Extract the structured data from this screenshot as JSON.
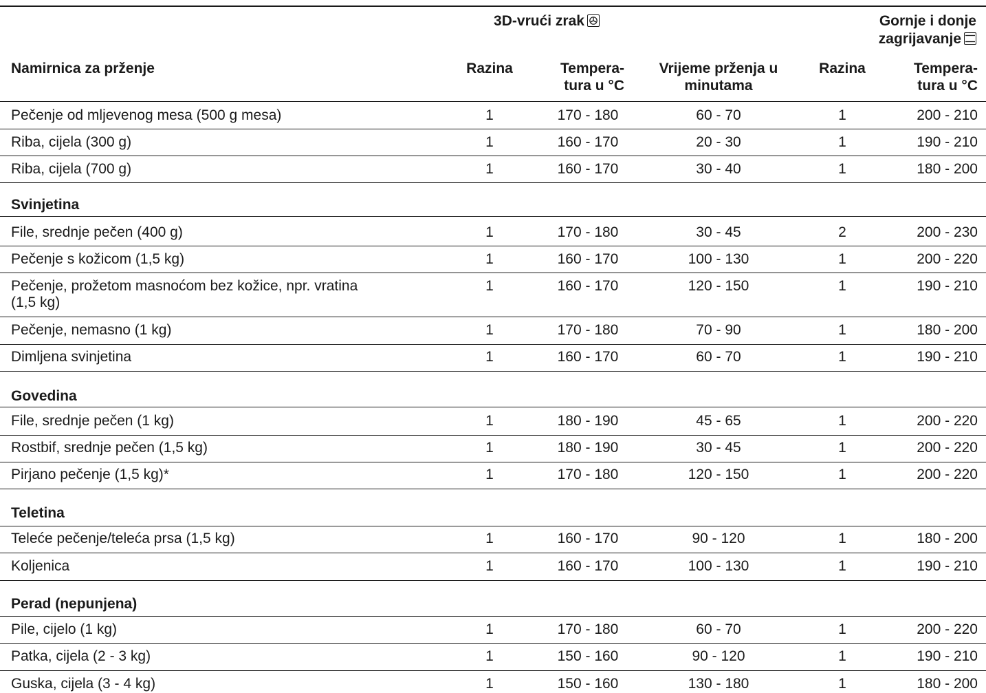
{
  "header": {
    "group1": "3D-vrući zrak",
    "group2_line1": "Gornje i donje",
    "group2_line2": "zagrijavanje",
    "col_name": "Namirnica za prženje",
    "col_razina1": "Razina",
    "col_temp1_line1": "Tempera-",
    "col_temp1_line2": "tura u °C",
    "col_time_line1": "Vrijeme prženja u",
    "col_time_line2": "minutama",
    "col_razina2": "Razina",
    "col_temp2_line1": "Tempera-",
    "col_temp2_line2": "tura u °C",
    "icons": {
      "group1": "fan-icon",
      "group2": "top-bottom-heat-icon"
    }
  },
  "rows": [
    {
      "name": "Pečenje od mljevenog mesa (500 g mesa)",
      "raz1": "1",
      "temp1": "170 - 180",
      "time": "60 - 70",
      "raz2": "1",
      "temp2": "200 - 210"
    },
    {
      "name": "Riba, cijela (300 g)",
      "raz1": "1",
      "temp1": "160 - 170",
      "time": "20 - 30",
      "raz2": "1",
      "temp2": "190 - 210"
    },
    {
      "name": "Riba, cijela (700 g)",
      "raz1": "1",
      "temp1": "160 - 170",
      "time": "30 - 40",
      "raz2": "1",
      "temp2": "180 - 200"
    },
    {
      "section": "Svinjetina"
    },
    {
      "name": "File, srednje pečen (400 g)",
      "raz1": "1",
      "temp1": "170 - 180",
      "time": "30 - 45",
      "raz2": "2",
      "temp2": "200 - 230"
    },
    {
      "name": "Pečenje s kožicom (1,5 kg)",
      "raz1": "1",
      "temp1": "160 - 170",
      "time": "100 - 130",
      "raz2": "1",
      "temp2": "200 - 220"
    },
    {
      "name": "Pečenje, prožetom masnoćom bez kožice, npr. vratina",
      "name2": "(1,5 kg)",
      "raz1": "1",
      "temp1": "160 - 170",
      "time": "120 - 150",
      "raz2": "1",
      "temp2": "190 - 210"
    },
    {
      "name": "Pečenje, nemasno (1 kg)",
      "raz1": "1",
      "temp1": "170 - 180",
      "time": "70 - 90",
      "raz2": "1",
      "temp2": "180 - 200"
    },
    {
      "name": "Dimljena svinjetina",
      "raz1": "1",
      "temp1": "160 - 170",
      "time": "60 - 70",
      "raz2": "1",
      "temp2": "190 - 210"
    },
    {
      "section": "Govedina"
    },
    {
      "name": "File, srednje pečen (1 kg)",
      "raz1": "1",
      "temp1": "180 - 190",
      "time": "45 - 65",
      "raz2": "1",
      "temp2": "200 - 220"
    },
    {
      "name": "Rostbif, srednje pečen (1,5 kg)",
      "raz1": "1",
      "temp1": "180 - 190",
      "time": "30 - 45",
      "raz2": "1",
      "temp2": "200 - 220"
    },
    {
      "name": "Pirjano pečenje (1,5 kg)*",
      "raz1": "1",
      "temp1": "170 - 180",
      "time": "120 - 150",
      "raz2": "1",
      "temp2": "200 - 220"
    },
    {
      "section": "Teletina"
    },
    {
      "name": "Teleće pečenje/teleća prsa (1,5 kg)",
      "raz1": "1",
      "temp1": "160 - 170",
      "time": "90 - 120",
      "raz2": "1",
      "temp2": "180 - 200"
    },
    {
      "name": "Koljenica",
      "raz1": "1",
      "temp1": "160 - 170",
      "time": "100 - 130",
      "raz2": "1",
      "temp2": "190 - 210"
    },
    {
      "section": "Perad (nepunjena)"
    },
    {
      "name": "Pile, cijelo (1 kg)",
      "raz1": "1",
      "temp1": "170 - 180",
      "time": "60 - 70",
      "raz2": "1",
      "temp2": "200 - 220"
    },
    {
      "name": "Patka, cijela (2 - 3 kg)",
      "raz1": "1",
      "temp1": "150 - 160",
      "time": "90 - 120",
      "raz2": "1",
      "temp2": "190 - 210"
    },
    {
      "name": "Guska, cijela (3 - 4 kg)",
      "raz1": "1",
      "temp1": "150 - 160",
      "time": "130 - 180",
      "raz2": "1",
      "temp2": "180 - 200"
    }
  ]
}
